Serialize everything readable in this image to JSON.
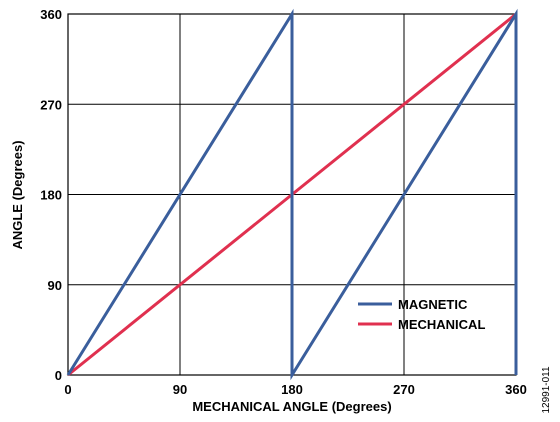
{
  "chart_data": {
    "type": "line",
    "xlabel": "MECHANICAL ANGLE (Degrees)",
    "ylabel": "ANGLE (Degrees)",
    "xlim": [
      0,
      360
    ],
    "ylim": [
      0,
      360
    ],
    "xticks": [
      0,
      90,
      180,
      270,
      360
    ],
    "yticks": [
      0,
      90,
      180,
      270,
      360
    ],
    "grid": true,
    "legend_position": "bottom-right",
    "series": [
      {
        "name": "MAGNETIC",
        "color": "#3a5e9c",
        "x": [
          0,
          180,
          180,
          360,
          360
        ],
        "y": [
          0,
          360,
          0,
          360,
          0
        ]
      },
      {
        "name": "MECHANICAL",
        "color": "#e0304f",
        "x": [
          0,
          360
        ],
        "y": [
          0,
          360
        ]
      }
    ],
    "figure_id": "12991-011"
  }
}
